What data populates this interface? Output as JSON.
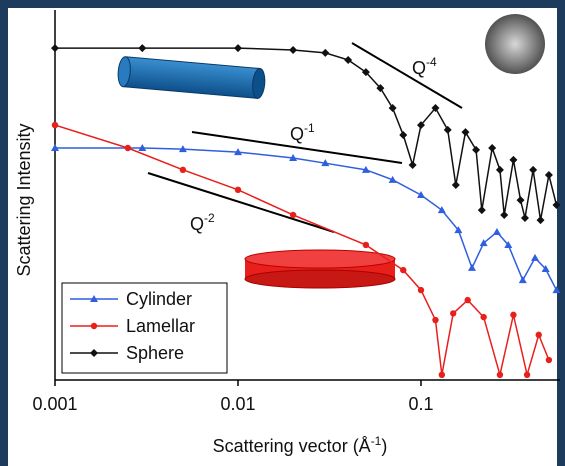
{
  "chart_data": {
    "type": "line",
    "x_label": "Scattering vector (Å",
    "x_label_sup": "-1",
    "x_label_end": ")",
    "y_label": "Scattering Intensity",
    "xscale": "log",
    "xlim": [
      0.001,
      0.575
    ],
    "xticks": [
      0.001,
      0.01,
      0.1
    ],
    "ylim": [
      0,
      100
    ],
    "legend": "lower left",
    "annotations": [
      {
        "text": "Q",
        "sup": "-4"
      },
      {
        "text": "Q",
        "sup": "-1"
      },
      {
        "text": "Q",
        "sup": "-2"
      }
    ],
    "series": [
      {
        "name": "Cylinder",
        "color": "#2f5fe0",
        "marker": "triangle",
        "x": [
          0.001,
          0.003,
          0.005,
          0.01,
          0.02,
          0.03,
          0.05,
          0.07,
          0.1,
          0.13,
          0.16,
          0.19,
          0.22,
          0.26,
          0.3,
          0.36,
          0.42,
          0.48,
          0.55
        ],
        "values": [
          62.7,
          62.7,
          62.4,
          61.6,
          60.0,
          58.6,
          56.8,
          54.1,
          50.0,
          45.9,
          40.5,
          30.3,
          37.0,
          40.0,
          36.5,
          27.0,
          33.0,
          30.0,
          24.3
        ]
      },
      {
        "name": "Lamellar",
        "color": "#e8201c",
        "marker": "circle",
        "x": [
          0.001,
          0.0025,
          0.005,
          0.01,
          0.02,
          0.05,
          0.08,
          0.1,
          0.12,
          0.13,
          0.15,
          0.18,
          0.22,
          0.27,
          0.32,
          0.38,
          0.44,
          0.5
        ],
        "values": [
          68.9,
          62.7,
          56.8,
          51.4,
          44.6,
          36.5,
          29.7,
          24.3,
          16.2,
          1.4,
          18.0,
          21.6,
          17.0,
          1.4,
          17.6,
          1.4,
          12.2,
          5.4
        ]
      },
      {
        "name": "Sphere",
        "color": "#111111",
        "marker": "diamond",
        "x": [
          0.001,
          0.003,
          0.01,
          0.02,
          0.03,
          0.04,
          0.05,
          0.06,
          0.07,
          0.08,
          0.09,
          0.1,
          0.12,
          0.14,
          0.155,
          0.175,
          0.2,
          0.215,
          0.245,
          0.27,
          0.285,
          0.32,
          0.35,
          0.37,
          0.41,
          0.45,
          0.5,
          0.55
        ],
        "values": [
          89.7,
          89.7,
          89.7,
          89.2,
          88.4,
          86.5,
          83.2,
          78.9,
          73.5,
          66.2,
          58.1,
          68.9,
          73.5,
          67.6,
          52.7,
          67.0,
          62.2,
          45.9,
          62.7,
          56.8,
          44.6,
          59.5,
          48.6,
          43.8,
          56.8,
          43.2,
          55.4,
          47.3
        ]
      }
    ]
  }
}
